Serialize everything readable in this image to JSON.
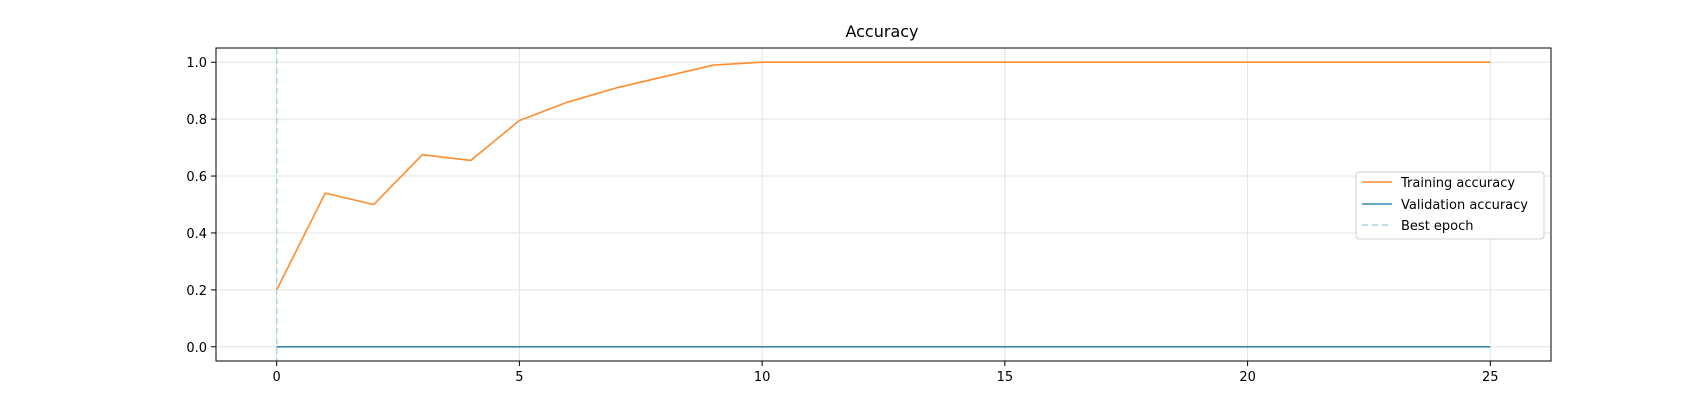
{
  "chart_data": {
    "type": "line",
    "title": "Accuracy",
    "xlabel": "",
    "ylabel": "",
    "xlim": [
      -1.25,
      26.25
    ],
    "ylim": [
      -0.05,
      1.05
    ],
    "xticks": [
      0,
      5,
      10,
      15,
      20,
      25
    ],
    "yticks": [
      0.0,
      0.2,
      0.4,
      0.6,
      0.8,
      1.0
    ],
    "xtick_labels": [
      "0",
      "5",
      "10",
      "15",
      "20",
      "25"
    ],
    "ytick_labels": [
      "0.0",
      "0.2",
      "0.4",
      "0.6",
      "0.8",
      "1.0"
    ],
    "grid": true,
    "legend_position": "center-right",
    "x": [
      0,
      1,
      2,
      3,
      4,
      5,
      6,
      7,
      8,
      9,
      10,
      11,
      12,
      13,
      14,
      15,
      16,
      17,
      18,
      19,
      20,
      21,
      22,
      23,
      24,
      25
    ],
    "series": [
      {
        "name": "Training accuracy",
        "color": "#ff8c2e",
        "values": [
          0.2,
          0.54,
          0.5,
          0.675,
          0.655,
          0.795,
          0.86,
          0.91,
          0.95,
          0.99,
          1.0,
          1.0,
          1.0,
          1.0,
          1.0,
          1.0,
          1.0,
          1.0,
          1.0,
          1.0,
          1.0,
          1.0,
          1.0,
          1.0,
          1.0,
          1.0
        ]
      },
      {
        "name": "Validation accuracy",
        "color": "#3a87b0",
        "values": [
          0.0,
          0.0,
          0.0,
          0.0,
          0.0,
          0.0,
          0.0,
          0.0,
          0.0,
          0.0,
          0.0,
          0.0,
          0.0,
          0.0,
          0.0,
          0.0,
          0.0,
          0.0,
          0.0,
          0.0,
          0.0,
          0.0,
          0.0,
          0.0,
          0.0,
          0.0
        ]
      }
    ],
    "best_epoch": {
      "name": "Best epoch",
      "x": 0,
      "color": "#a9d8dc",
      "style": "dashed"
    }
  }
}
